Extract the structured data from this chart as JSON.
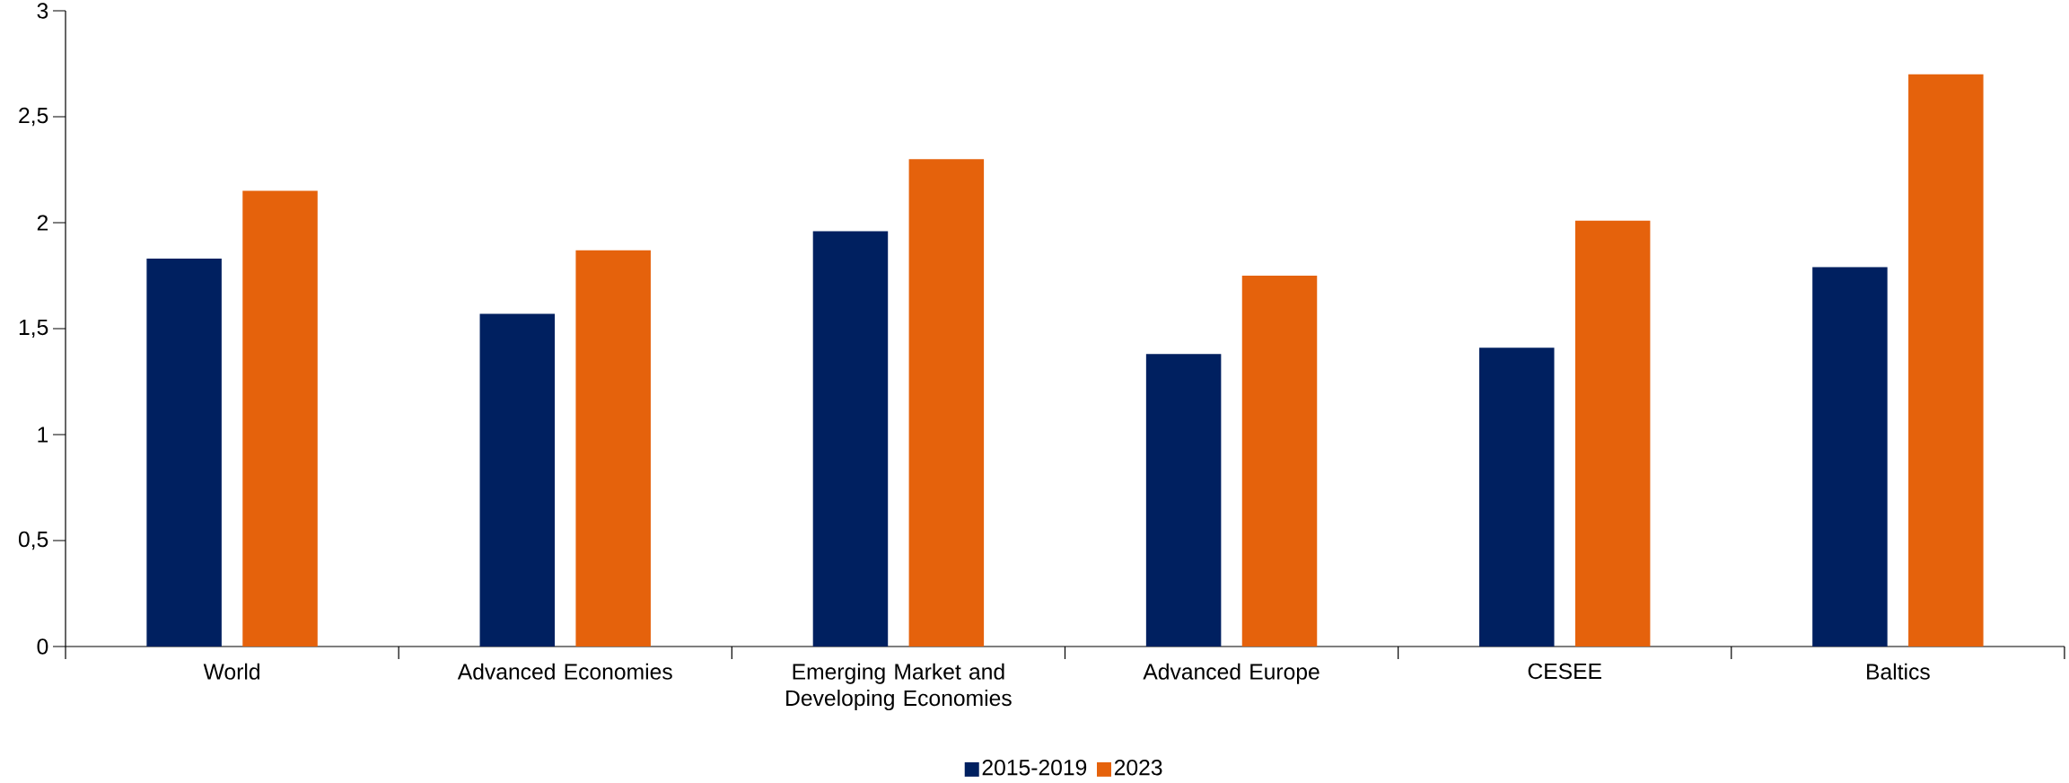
{
  "chart_data": {
    "type": "bar",
    "categories": [
      "World",
      "Advanced Economies",
      "Emerging Market and Developing Economies",
      "Advanced Europe",
      "CESEE",
      "Baltics"
    ],
    "series": [
      {
        "name": "2015-2019",
        "color": "#002060",
        "values": [
          1.83,
          1.57,
          1.96,
          1.38,
          1.41,
          1.79
        ]
      },
      {
        "name": "2023",
        "color": "#e5620c",
        "values": [
          2.15,
          1.87,
          2.3,
          1.75,
          2.01,
          2.7
        ]
      }
    ],
    "ylim": [
      0,
      3
    ],
    "yticks": [
      0,
      {
        "value": 0.5,
        "label": "0,5"
      },
      1,
      {
        "value": 1.5,
        "label": "1,5"
      },
      2,
      {
        "value": 2.5,
        "label": "2,5"
      },
      3
    ],
    "grid": false,
    "legend": "bottom"
  }
}
